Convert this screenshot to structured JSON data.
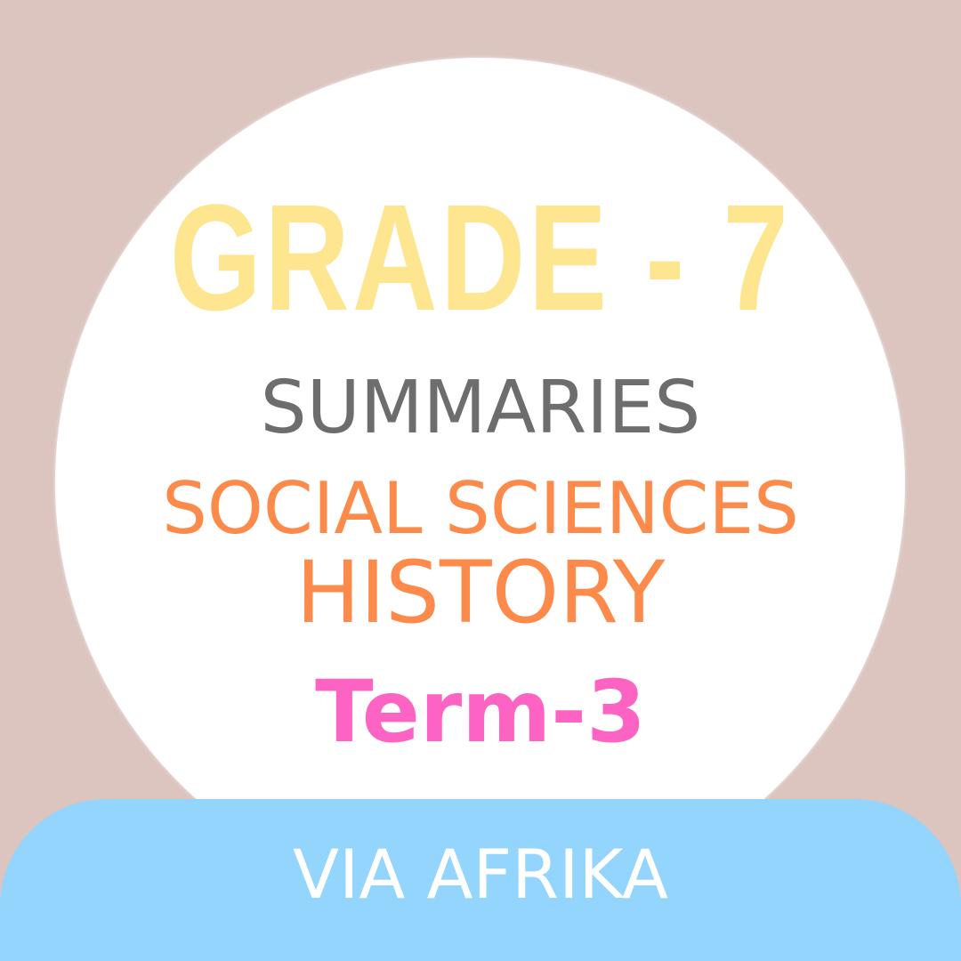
{
  "title": "GRADE - 7",
  "subtitle": "SUMMARIES",
  "subject": "SOCIAL SCIENCES",
  "topic": "HISTORY",
  "term": "Term-3",
  "publisher": "VIA AFRIKA"
}
